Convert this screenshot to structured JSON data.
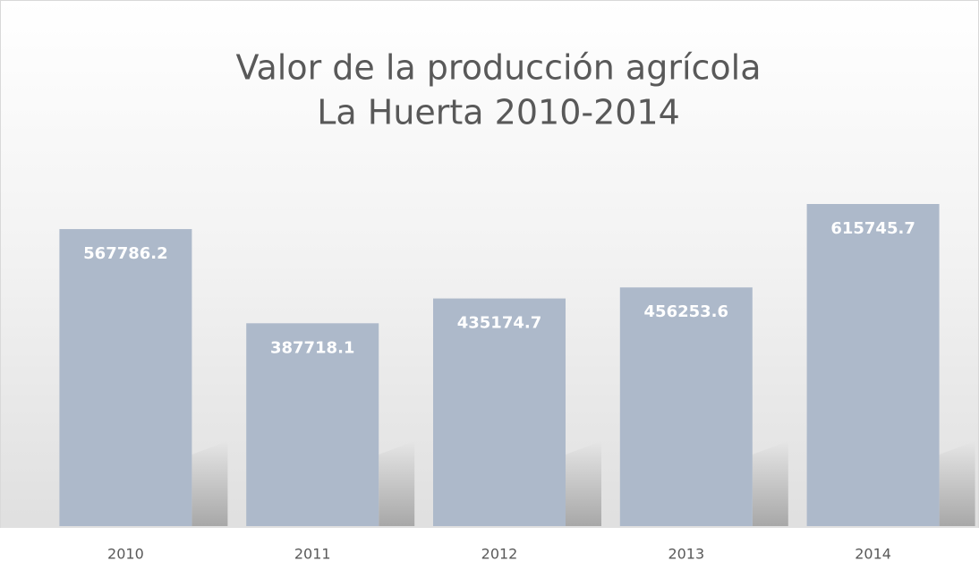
{
  "chart_data": {
    "type": "bar",
    "title": [
      "Valor de la producción agrícola",
      "La Huerta 2010-2014"
    ],
    "categories": [
      "2010",
      "2011",
      "2012",
      "2013",
      "2014"
    ],
    "values": [
      567786.2,
      387718.1,
      435174.7,
      456253.6,
      615745.7
    ],
    "color": "#adb9ca"
  }
}
